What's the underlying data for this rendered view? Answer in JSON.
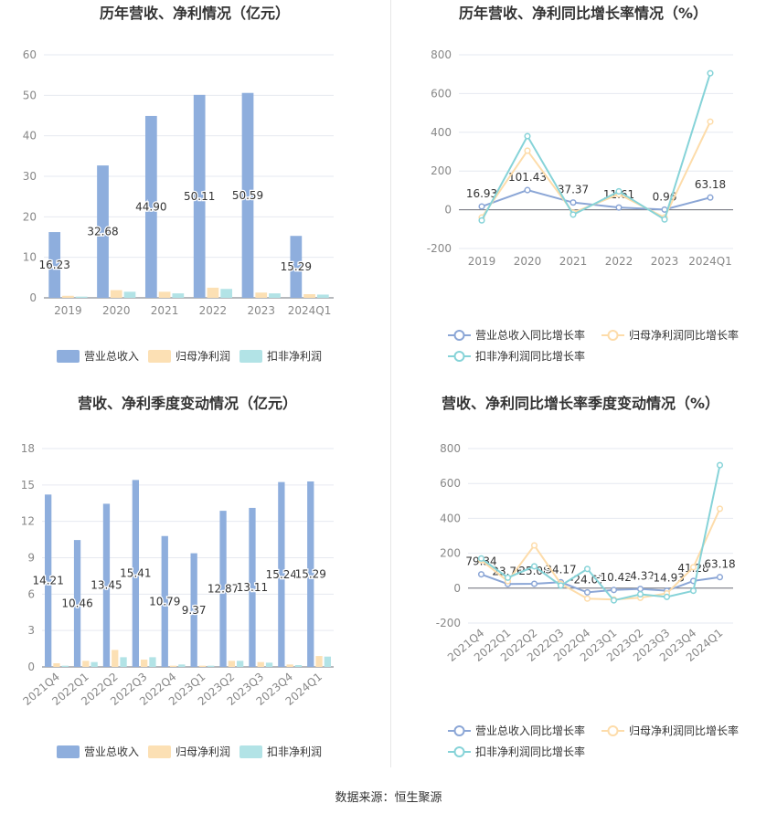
{
  "colors": {
    "revenue": "#8eaedd",
    "parent_profit": "#fce0b4",
    "deducted_profit": "#b2e3e6",
    "revenue_line": "#8ba6d6",
    "parent_line": "#fddcaa",
    "deducted_line": "#86d3d8",
    "grid": "#e6e9f0",
    "axis_text": "#888888",
    "title": "#333333"
  },
  "footer": {
    "source": "数据来源：恒生聚源"
  },
  "chart_data": [
    {
      "id": "annual-values",
      "type": "bar",
      "title": "历年营收、净利情况（亿元）",
      "categories": [
        "2019",
        "2020",
        "2021",
        "2022",
        "2023",
        "2024Q1"
      ],
      "ylim": [
        0,
        60
      ],
      "yticks": [
        0,
        10,
        20,
        30,
        40,
        50,
        60
      ],
      "series": [
        {
          "name": "营业总收入",
          "values": [
            16.23,
            32.68,
            44.9,
            50.11,
            50.59,
            15.29
          ],
          "labels": [
            "16.23",
            "32.68",
            "44.90",
            "50.11",
            "50.59",
            "15.29"
          ]
        },
        {
          "name": "归母净利润",
          "values": [
            0.5,
            1.9,
            1.5,
            2.5,
            1.3,
            0.9
          ]
        },
        {
          "name": "扣非净利润",
          "values": [
            0.3,
            1.5,
            1.1,
            2.2,
            1.1,
            0.8
          ]
        }
      ]
    },
    {
      "id": "annual-growth",
      "type": "line",
      "title": "历年营收、净利同比增长率情况（%）",
      "categories": [
        "2019",
        "2020",
        "2021",
        "2022",
        "2023",
        "2024Q1"
      ],
      "ylim": [
        -200,
        800
      ],
      "yticks": [
        -200,
        0,
        200,
        400,
        600,
        800
      ],
      "series": [
        {
          "name": "营业总收入同比增长率",
          "values": [
            16.93,
            101.43,
            37.37,
            11.61,
            0.96,
            63.18
          ],
          "labels": [
            "16.93",
            "101.43",
            "37.37",
            "11.61",
            "0.96",
            "63.18"
          ]
        },
        {
          "name": "归母净利润同比增长率",
          "values": [
            -40,
            305,
            -15,
            80,
            -40,
            455
          ]
        },
        {
          "name": "扣非净利润同比增长率",
          "values": [
            -55,
            380,
            -25,
            95,
            -50,
            705
          ]
        }
      ]
    },
    {
      "id": "quarterly-values",
      "type": "bar",
      "title": "营收、净利季度变动情况（亿元）",
      "categories": [
        "2021Q4",
        "2022Q1",
        "2022Q2",
        "2022Q3",
        "2022Q4",
        "2023Q1",
        "2023Q2",
        "2023Q3",
        "2023Q4",
        "2024Q1"
      ],
      "ylim": [
        0,
        18
      ],
      "yticks": [
        0,
        3,
        6,
        9,
        12,
        15,
        18
      ],
      "series": [
        {
          "name": "营业总收入",
          "values": [
            14.21,
            10.46,
            13.45,
            15.41,
            10.79,
            9.37,
            12.87,
            13.11,
            15.24,
            15.29
          ],
          "labels": [
            "14.21",
            "10.46",
            "13.45",
            "15.41",
            "10.79",
            "9.37",
            "12.87",
            "13.11",
            "15.24",
            "15.29"
          ]
        },
        {
          "name": "归母净利润",
          "values": [
            0.3,
            0.5,
            1.4,
            0.6,
            0.1,
            0.1,
            0.5,
            0.4,
            0.2,
            0.9
          ]
        },
        {
          "name": "扣非净利润",
          "values": [
            0.1,
            0.4,
            0.8,
            0.8,
            0.2,
            0.1,
            0.5,
            0.35,
            0.15,
            0.85
          ]
        }
      ]
    },
    {
      "id": "quarterly-growth",
      "type": "line",
      "title": "营收、净利同比增长率季度变动情况（%）",
      "categories": [
        "2021Q4",
        "2022Q1",
        "2022Q2",
        "2022Q3",
        "2022Q4",
        "2023Q1",
        "2023Q2",
        "2023Q3",
        "2023Q4",
        "2024Q1"
      ],
      "ylim": [
        -200,
        800
      ],
      "yticks": [
        -200,
        0,
        200,
        400,
        600,
        800
      ],
      "series": [
        {
          "name": "营业总收入同比增长率",
          "values": [
            79.34,
            23.76,
            25.08,
            34.17,
            -24.07,
            -10.42,
            -4.32,
            -14.93,
            41.28,
            63.18
          ],
          "labels": [
            "79.34",
            "23.76",
            "25.08",
            "34.17",
            "-24.07",
            "-10.42",
            "-4.32",
            "-14.93",
            "41.28",
            "63.18"
          ]
        },
        {
          "name": "归母净利润同比增长率",
          "values": [
            160,
            40,
            245,
            25,
            -60,
            -65,
            -55,
            -30,
            120,
            455
          ]
        },
        {
          "name": "扣非净利润同比增长率",
          "values": [
            170,
            60,
            125,
            15,
            110,
            -70,
            -35,
            -50,
            -15,
            705
          ]
        }
      ]
    }
  ]
}
